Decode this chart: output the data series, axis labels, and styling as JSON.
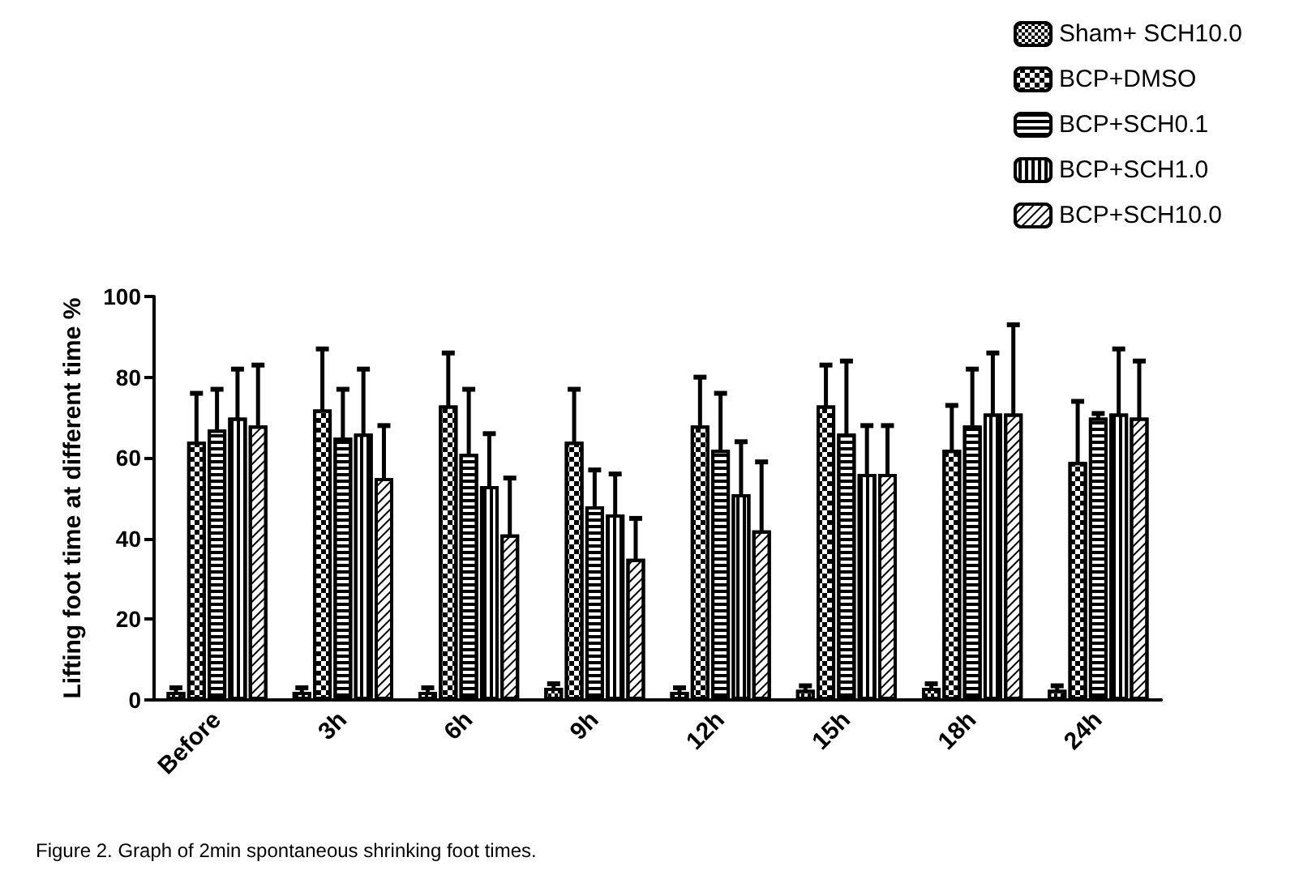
{
  "chart_data": {
    "type": "bar",
    "ylabel": "Lifting foot time at different time %",
    "categories": [
      "Before",
      "3h",
      "6h",
      "9h",
      "12h",
      "15h",
      "18h",
      "24h"
    ],
    "series": [
      {
        "name": "Sham+ SCH10.0",
        "color": "#ffffff",
        "values": [
          2,
          2,
          2,
          3,
          2,
          2.5,
          3,
          2.5
        ],
        "errors": [
          1,
          1,
          1,
          1,
          1,
          1,
          1,
          1
        ]
      },
      {
        "name": "BCP+DMSO",
        "color": "#ffffff",
        "values": [
          64,
          72,
          73,
          64,
          68,
          73,
          62,
          59
        ],
        "errors": [
          12,
          15,
          13,
          13,
          12,
          10,
          11,
          15
        ]
      },
      {
        "name": "BCP+SCH0.1",
        "color": "#ffffff",
        "values": [
          67,
          65,
          61,
          48,
          62,
          66,
          68,
          70
        ],
        "errors": [
          10,
          12,
          16,
          9,
          14,
          18,
          14,
          1
        ]
      },
      {
        "name": "BCP+SCH1.0",
        "color": "#ffffff",
        "values": [
          70,
          66,
          53,
          46,
          51,
          56,
          71,
          71
        ],
        "errors": [
          12,
          16,
          13,
          10,
          13,
          12,
          15,
          16
        ]
      },
      {
        "name": "BCP+SCH10.0",
        "color": "#ffffff",
        "values": [
          68,
          55,
          41,
          35,
          42,
          56,
          71,
          70
        ],
        "errors": [
          15,
          13,
          14,
          10,
          17,
          12,
          22,
          14
        ]
      }
    ],
    "ylim": [
      0,
      100
    ],
    "yticks": [
      0,
      20,
      40,
      60,
      80,
      100
    ],
    "grid": false,
    "legend": "top right",
    "annotations": [
      "Figure 2. Graph of 2min spontaneous shrinking foot times."
    ]
  }
}
